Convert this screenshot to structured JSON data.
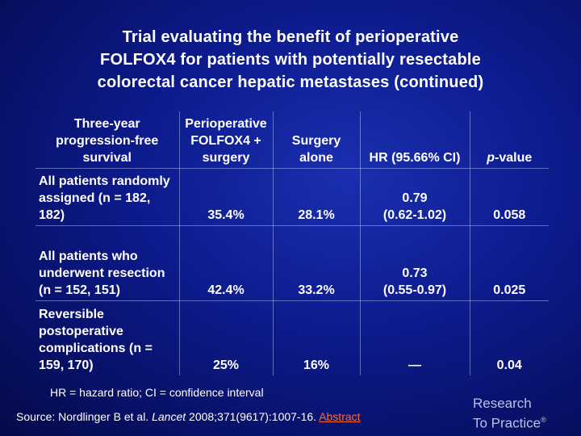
{
  "title": {
    "line1": "Trial evaluating the benefit of perioperative",
    "line2": "FOLFOX4 for patients with potentially resectable",
    "line3": "colorectal cancer hepatic metastases (continued)"
  },
  "table": {
    "headers": {
      "label": "Three-year progression-free survival",
      "col1": "Perioperative FOLFOX4 + surgery",
      "col2": "Surgery alone",
      "col3": "HR (95.66% CI)",
      "col4_italic": "p",
      "col4_rest": "-value"
    },
    "rows": [
      {
        "label": "All patients randomly assigned (n = 182, 182)",
        "folfox": "35.4%",
        "surgery": "28.1%",
        "hr": "0.79",
        "ci": "(0.62-1.02)",
        "p": "0.058"
      },
      {
        "label": "All patients who underwent resection (n = 152, 151)",
        "folfox": "42.4%",
        "surgery": "33.2%",
        "hr": "0.73",
        "ci": "(0.55-0.97)",
        "p": "0.025"
      },
      {
        "label": "Reversible postoperative complications (n = 159, 170)",
        "folfox": "25%",
        "surgery": "16%",
        "hr": "—",
        "ci": "",
        "p": "0.04"
      }
    ]
  },
  "footnote": "HR = hazard ratio; CI = confidence interval",
  "source": {
    "prefix": "Source: Nordlinger B et al.",
    "journal": "Lancet",
    "citation": "2008;371(9617):1007-16.",
    "link": "Abstract"
  },
  "logo": {
    "line1": "Research",
    "line2": "To Practice",
    "mark": "®"
  },
  "colors": {
    "background": "#0c1a8a",
    "text": "#ffffff",
    "link": "#ff6a3a",
    "logo": "#b8c0e8"
  }
}
